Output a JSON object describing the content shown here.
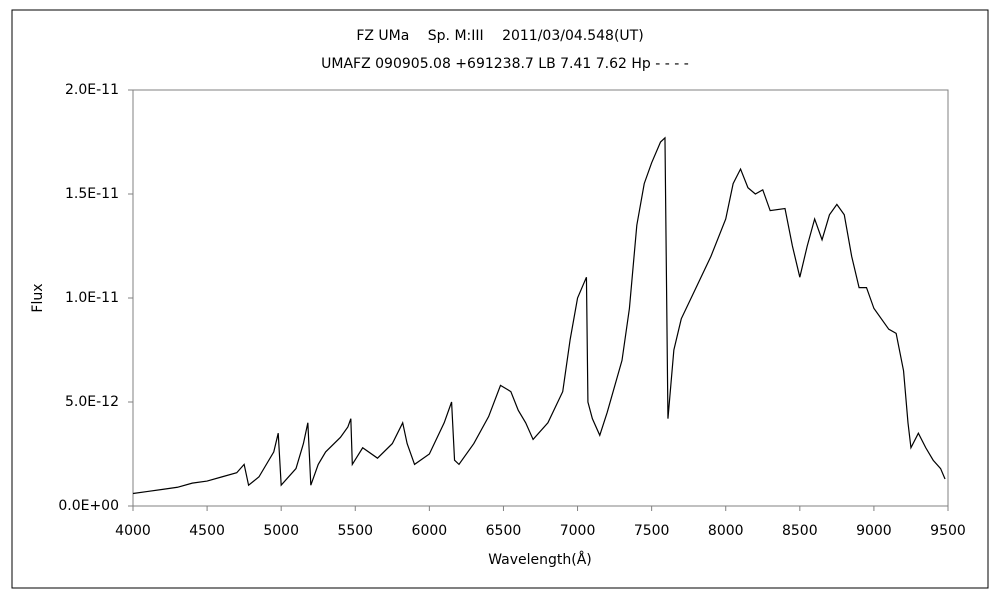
{
  "chart_data": {
    "type": "line",
    "title": "FZ UMa　 Sp. M:III　 2011/03/04.548(UT)",
    "subtitle": "UMAFZ 090905.08 +691238.7 LB 7.41 7.62 Hp - - - -",
    "x_label": "Wavelength(Å)",
    "y_label": "Flux",
    "xlim": [
      4000,
      9500
    ],
    "xticks": [
      4000,
      4500,
      5000,
      5500,
      6000,
      6500,
      7000,
      7500,
      8000,
      8500,
      9000,
      9500
    ],
    "ylim": [
      0,
      2e-11
    ],
    "yticks": [
      {
        "value": 0,
        "label": "0.0E+00"
      },
      {
        "value": 5e-12,
        "label": "5.0E-12"
      },
      {
        "value": 1e-11,
        "label": "1.0E-11"
      },
      {
        "value": 1.5e-11,
        "label": "1.5E-11"
      },
      {
        "value": 2e-11,
        "label": "2.0E-11"
      }
    ],
    "grid": false,
    "color": "#000000",
    "x": [
      4000,
      4100,
      4200,
      4300,
      4400,
      4500,
      4600,
      4700,
      4750,
      4780,
      4850,
      4950,
      4980,
      5000,
      5100,
      5150,
      5180,
      5200,
      5250,
      5300,
      5400,
      5450,
      5470,
      5480,
      5550,
      5650,
      5750,
      5820,
      5850,
      5900,
      6000,
      6100,
      6150,
      6170,
      6200,
      6300,
      6400,
      6480,
      6550,
      6600,
      6650,
      6700,
      6800,
      6900,
      6950,
      7000,
      7060,
      7070,
      7100,
      7150,
      7200,
      7300,
      7350,
      7400,
      7450,
      7500,
      7560,
      7590,
      7610,
      7650,
      7700,
      7800,
      7900,
      8000,
      8050,
      8100,
      8150,
      8200,
      8250,
      8300,
      8400,
      8450,
      8500,
      8550,
      8600,
      8650,
      8700,
      8750,
      8800,
      8850,
      8900,
      8950,
      9000,
      9100,
      9150,
      9200,
      9230,
      9250,
      9300,
      9350,
      9400,
      9450,
      9480
    ],
    "values": [
      6e-13,
      7e-13,
      8e-13,
      9e-13,
      1.1e-12,
      1.2e-12,
      1.4e-12,
      1.6e-12,
      2e-12,
      1e-12,
      1.4e-12,
      2.6e-12,
      3.5e-12,
      1e-12,
      1.8e-12,
      3e-12,
      4e-12,
      1e-12,
      2e-12,
      2.6e-12,
      3.3e-12,
      3.8e-12,
      4.2e-12,
      2e-12,
      2.8e-12,
      2.3e-12,
      3e-12,
      4e-12,
      3e-12,
      2e-12,
      2.5e-12,
      4e-12,
      5e-12,
      2.2e-12,
      2e-12,
      3e-12,
      4.3e-12,
      5.8e-12,
      5.5e-12,
      4.6e-12,
      4e-12,
      3.2e-12,
      4e-12,
      5.5e-12,
      8e-12,
      1e-11,
      1.1e-11,
      5e-12,
      4.2e-12,
      3.4e-12,
      4.5e-12,
      7e-12,
      9.5e-12,
      1.35e-11,
      1.55e-11,
      1.65e-11,
      1.75e-11,
      1.77e-11,
      4.2e-12,
      7.5e-12,
      9e-12,
      1.05e-11,
      1.2e-11,
      1.38e-11,
      1.55e-11,
      1.62e-11,
      1.53e-11,
      1.5e-11,
      1.52e-11,
      1.42e-11,
      1.43e-11,
      1.25e-11,
      1.1e-11,
      1.25e-11,
      1.38e-11,
      1.28e-11,
      1.4e-11,
      1.45e-11,
      1.4e-11,
      1.2e-11,
      1.05e-11,
      1.05e-11,
      9.5e-12,
      8.5e-12,
      8.3e-12,
      6.5e-12,
      4e-12,
      2.8e-12,
      3.5e-12,
      2.8e-12,
      2.2e-12,
      1.8e-12,
      1.3e-12
    ]
  }
}
